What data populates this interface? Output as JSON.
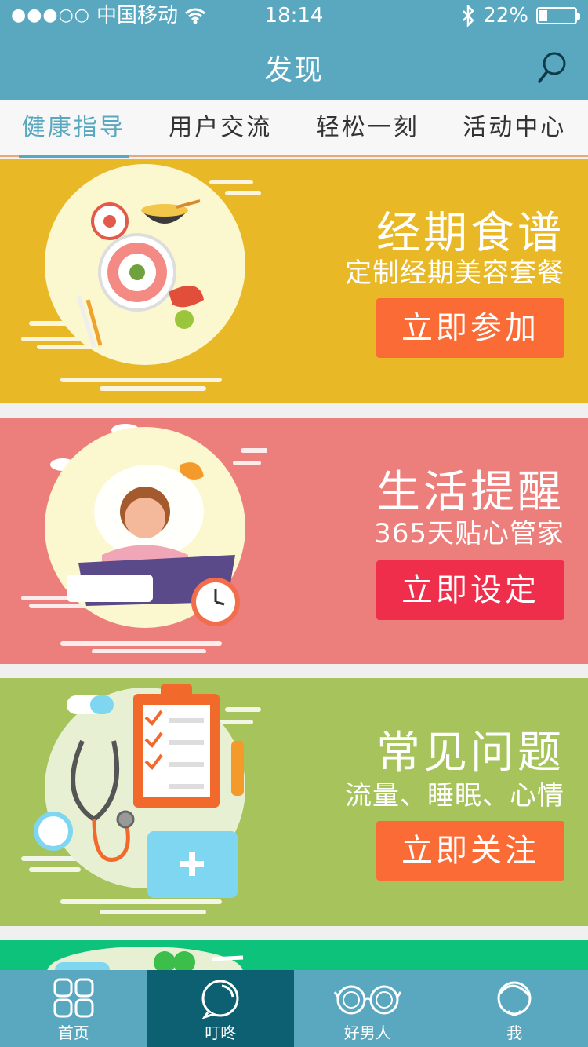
{
  "status_bar": {
    "signal": "●●●○○",
    "carrier": "中国移动",
    "time": "18:14",
    "battery_text": "22%",
    "battery_level": 0.22
  },
  "header": {
    "title": "发现"
  },
  "tabs": [
    {
      "label": "健康指导",
      "active": true
    },
    {
      "label": "用户交流",
      "active": false
    },
    {
      "label": "轻松一刻",
      "active": false
    },
    {
      "label": "活动中心",
      "active": false
    }
  ],
  "cards": [
    {
      "title": "经期食谱",
      "subtitle": "定制经期美容套餐",
      "button": "立即参加",
      "bg": "#e9b827",
      "button_color": "#fb6b36"
    },
    {
      "title": "生活提醒",
      "subtitle": "365天贴心管家",
      "button": "立即设定",
      "bg": "#ec7f7b",
      "button_color": "#ef2e4b"
    },
    {
      "title": "常见问题",
      "subtitle": "流量、睡眠、心情",
      "button": "立即关注",
      "bg": "#a6c35c",
      "button_color": "#fb6b36"
    },
    {
      "bg": "#0dc27b"
    }
  ],
  "bottom_nav": [
    {
      "label": "首页",
      "icon": "grid-icon",
      "active": false
    },
    {
      "label": "叮咚",
      "icon": "chat-bubble-icon",
      "active": true
    },
    {
      "label": "好男人",
      "icon": "glasses-icon",
      "active": false
    },
    {
      "label": "我",
      "icon": "user-icon",
      "active": false
    }
  ]
}
